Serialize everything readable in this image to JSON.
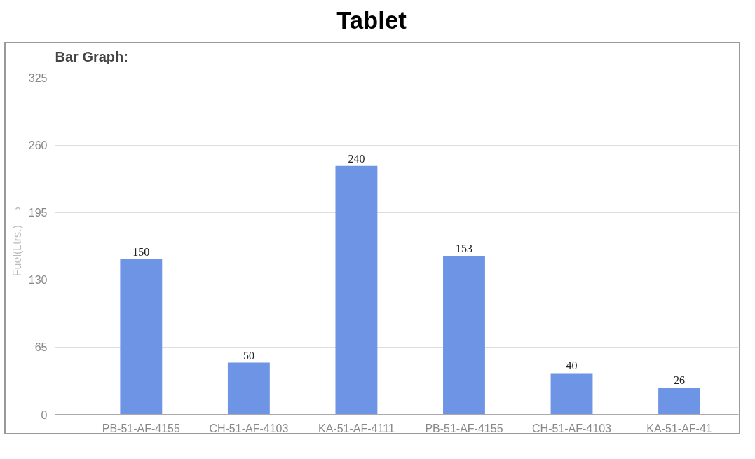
{
  "chart_data": {
    "type": "bar",
    "title": "Tablet",
    "subtitle": "Bar Graph:",
    "ylabel": "Fuel(Ltrs.) ⟶",
    "categories": [
      "PB-51-AF-4155",
      "CH-51-AF-4103",
      "KA-51-AF-4111",
      "PB-51-AF-4155",
      "CH-51-AF-4103",
      "KA-51-AF-41"
    ],
    "values": [
      150,
      50,
      240,
      153,
      40,
      26
    ],
    "color": "#6d94e5",
    "ylim": [
      0,
      335
    ],
    "yticks": [
      0,
      65,
      130,
      195,
      260,
      325
    ],
    "grid": "y",
    "data_labels": true
  }
}
